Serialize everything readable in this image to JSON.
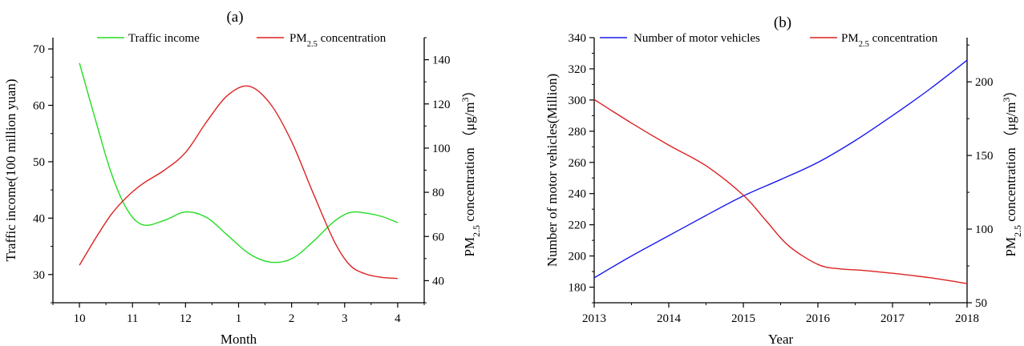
{
  "chart_data": [
    {
      "panel_label": "(a)",
      "type": "line",
      "xlabel": "Month",
      "categories": [
        "10",
        "11",
        "12",
        "1",
        "2",
        "3",
        "4"
      ],
      "ylabel_left": "Traffic income(100 million yuan)",
      "ylabel_right": {
        "prefix": "PM",
        "sub": "2.5",
        "middle": " concentration  （μg/m",
        "sup": "3",
        "suffix": "）"
      },
      "ylim_left": [
        25,
        72
      ],
      "yticks_left": [
        30,
        40,
        50,
        60,
        70
      ],
      "ylim_right": [
        30,
        150
      ],
      "yticks_right": [
        40,
        60,
        80,
        100,
        120,
        140
      ],
      "legend_position": "top",
      "series": [
        {
          "legend": {
            "prefix": "Traffic income",
            "sub": "",
            "suffix": ""
          },
          "axis": "left",
          "color": "#22dd22",
          "x": [
            10,
            10.3,
            10.6,
            10.9,
            11.2,
            11.6,
            12,
            12.4,
            12.8,
            13.2,
            13.6,
            14,
            14.4,
            14.8,
            15.1,
            15.4,
            15.7,
            16
          ],
          "y": [
            67.5,
            57.5,
            48.0,
            41.5,
            38.8,
            39.6,
            41.1,
            40.1,
            36.9,
            33.7,
            32.2,
            32.8,
            35.8,
            39.4,
            41.0,
            40.9,
            40.3,
            39.2
          ]
        },
        {
          "legend": {
            "prefix": "PM",
            "sub": "2.5",
            "suffix": " concentration"
          },
          "axis": "right",
          "color": "#dd2222",
          "x": [
            10,
            10.3,
            10.6,
            10.9,
            11.2,
            11.6,
            12,
            12.4,
            12.8,
            13.2,
            13.6,
            14,
            14.4,
            14.8,
            15.1,
            15.4,
            15.7,
            16
          ],
          "y": [
            47,
            59,
            70,
            78,
            84,
            90,
            98,
            112,
            124,
            128,
            120,
            103,
            80,
            58,
            47,
            43,
            41.5,
            41
          ]
        }
      ]
    },
    {
      "panel_label": "(b)",
      "type": "line",
      "xlabel": "Year",
      "categories": [
        "2013",
        "2014",
        "2015",
        "2016",
        "2017",
        "2018"
      ],
      "ylabel_left": "Number of motor vehicles(Million)",
      "ylabel_right": {
        "prefix": "PM",
        "sub": "2.5",
        "middle": " concentration  （μg/m",
        "sup": "3",
        "suffix": "）"
      },
      "ylim_left": [
        170,
        340
      ],
      "yticks_left": [
        180,
        200,
        220,
        240,
        260,
        280,
        300,
        320,
        340
      ],
      "ylim_right": [
        50,
        230
      ],
      "yticks_right": [
        50,
        100,
        150,
        200
      ],
      "legend_position": "top",
      "series": [
        {
          "legend": {
            "prefix": "Number of motor vehicles",
            "sub": "",
            "suffix": ""
          },
          "axis": "left",
          "color": "#1a1aee",
          "x": [
            2013,
            2013.5,
            2014,
            2014.5,
            2015,
            2015.5,
            2016,
            2016.5,
            2017,
            2017.5,
            2018
          ],
          "y": [
            186,
            200,
            213,
            226,
            238.5,
            249,
            260,
            274,
            290,
            307,
            325.5
          ]
        },
        {
          "legend": {
            "prefix": "PM",
            "sub": "2.5",
            "suffix": " concentration"
          },
          "axis": "right",
          "color": "#dd2222",
          "x": [
            2013,
            2013.5,
            2014,
            2014.5,
            2015,
            2015.3,
            2015.6,
            2016,
            2016.3,
            2016.6,
            2017,
            2017.5,
            2018
          ],
          "y": [
            188,
            172,
            157,
            143,
            123,
            106,
            89,
            76,
            73,
            72,
            70,
            67,
            63
          ]
        }
      ]
    }
  ]
}
